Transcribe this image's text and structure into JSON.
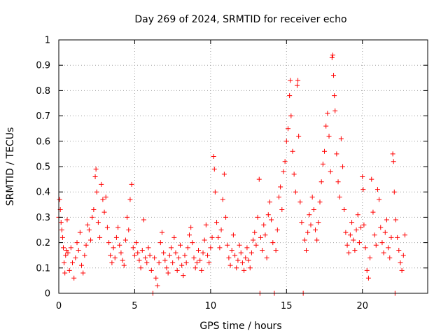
{
  "chart_data": {
    "type": "scatter",
    "title": "Day 269 of 2024, SRMTID for receiver echo",
    "xlabel": "GPS time / hours",
    "ylabel": "SRMTID / TECUs",
    "xlim": [
      0,
      24.3
    ],
    "ylim": [
      0,
      1
    ],
    "xticks": [
      0,
      5,
      10,
      15,
      20
    ],
    "xtick_labels": [
      "0",
      "5",
      "10",
      "15",
      "20"
    ],
    "yticks": [
      0,
      0.1,
      0.2,
      0.3,
      0.4,
      0.5,
      0.6,
      0.7,
      0.8,
      0.9,
      1
    ],
    "ytick_labels": [
      "0",
      "0.1",
      "0.2",
      "0.3",
      "0.4",
      "0.5",
      "0.6",
      "0.7",
      "0.8",
      "0.9",
      "1"
    ],
    "grid": true,
    "marker": "+",
    "color": "#ff0000",
    "series": [
      {
        "name": "SRMTID",
        "points": [
          [
            0.0,
            0.3
          ],
          [
            0.05,
            0.37
          ],
          [
            0.1,
            0.33
          ],
          [
            0.15,
            0.28
          ],
          [
            0.2,
            0.25
          ],
          [
            0.25,
            0.22
          ],
          [
            0.3,
            0.18
          ],
          [
            0.35,
            0.12
          ],
          [
            0.4,
            0.08
          ],
          [
            0.45,
            0.15
          ],
          [
            0.5,
            0.17
          ],
          [
            0.55,
            0.29
          ],
          [
            0.6,
            0.16
          ],
          [
            0.7,
            0.09
          ],
          [
            0.8,
            0.18
          ],
          [
            0.9,
            0.12
          ],
          [
            1.0,
            0.06
          ],
          [
            1.1,
            0.14
          ],
          [
            1.2,
            0.2
          ],
          [
            1.3,
            0.17
          ],
          [
            1.4,
            0.24
          ],
          [
            1.5,
            0.11
          ],
          [
            1.6,
            0.08
          ],
          [
            1.7,
            0.15
          ],
          [
            1.8,
            0.19
          ],
          [
            1.9,
            0.27
          ],
          [
            2.0,
            0.25
          ],
          [
            2.1,
            0.21
          ],
          [
            2.2,
            0.3
          ],
          [
            2.3,
            0.33
          ],
          [
            2.4,
            0.46
          ],
          [
            2.45,
            0.49
          ],
          [
            2.5,
            0.4
          ],
          [
            2.6,
            0.28
          ],
          [
            2.7,
            0.22
          ],
          [
            2.8,
            0.43
          ],
          [
            2.9,
            0.37
          ],
          [
            3.0,
            0.32
          ],
          [
            3.1,
            0.38
          ],
          [
            3.2,
            0.26
          ],
          [
            3.3,
            0.2
          ],
          [
            3.4,
            0.15
          ],
          [
            3.5,
            0.12
          ],
          [
            3.6,
            0.18
          ],
          [
            3.7,
            0.14
          ],
          [
            3.8,
            0.22
          ],
          [
            3.9,
            0.26
          ],
          [
            4.0,
            0.19
          ],
          [
            4.1,
            0.16
          ],
          [
            4.2,
            0.13
          ],
          [
            4.3,
            0.11
          ],
          [
            4.4,
            0.21
          ],
          [
            4.5,
            0.3
          ],
          [
            4.6,
            0.25
          ],
          [
            4.7,
            0.37
          ],
          [
            4.8,
            0.43
          ],
          [
            4.9,
            0.18
          ],
          [
            5.0,
            0.15
          ],
          [
            5.1,
            0.2
          ],
          [
            5.2,
            0.16
          ],
          [
            5.3,
            0.13
          ],
          [
            5.4,
            0.1
          ],
          [
            5.5,
            0.17
          ],
          [
            5.6,
            0.29
          ],
          [
            5.7,
            0.14
          ],
          [
            5.8,
            0.12
          ],
          [
            5.9,
            0.18
          ],
          [
            6.0,
            0.15
          ],
          [
            6.1,
            0.09
          ],
          [
            6.2,
            0.0
          ],
          [
            6.3,
            0.14
          ],
          [
            6.4,
            0.06
          ],
          [
            6.5,
            0.03
          ],
          [
            6.6,
            0.12
          ],
          [
            6.7,
            0.2
          ],
          [
            6.8,
            0.24
          ],
          [
            6.9,
            0.16
          ],
          [
            7.0,
            0.13
          ],
          [
            7.1,
            0.1
          ],
          [
            7.2,
            0.08
          ],
          [
            7.3,
            0.15
          ],
          [
            7.4,
            0.18
          ],
          [
            7.5,
            0.12
          ],
          [
            7.6,
            0.22
          ],
          [
            7.7,
            0.16
          ],
          [
            7.8,
            0.09
          ],
          [
            7.9,
            0.14
          ],
          [
            8.0,
            0.19
          ],
          [
            8.1,
            0.11
          ],
          [
            8.2,
            0.07
          ],
          [
            8.3,
            0.15
          ],
          [
            8.4,
            0.12
          ],
          [
            8.5,
            0.18
          ],
          [
            8.6,
            0.23
          ],
          [
            8.7,
            0.26
          ],
          [
            8.8,
            0.2
          ],
          [
            8.9,
            0.14
          ],
          [
            9.0,
            0.1
          ],
          [
            9.1,
            0.12
          ],
          [
            9.2,
            0.17
          ],
          [
            9.3,
            0.13
          ],
          [
            9.4,
            0.09
          ],
          [
            9.5,
            0.16
          ],
          [
            9.6,
            0.21
          ],
          [
            9.7,
            0.27
          ],
          [
            9.8,
            0.15
          ],
          [
            9.9,
            0.12
          ],
          [
            10.0,
            0.18
          ],
          [
            10.1,
            0.22
          ],
          [
            10.2,
            0.54
          ],
          [
            10.25,
            0.49
          ],
          [
            10.3,
            0.4
          ],
          [
            10.4,
            0.28
          ],
          [
            10.5,
            0.22
          ],
          [
            10.6,
            0.18
          ],
          [
            10.7,
            0.25
          ],
          [
            10.8,
            0.37
          ],
          [
            10.9,
            0.47
          ],
          [
            11.0,
            0.3
          ],
          [
            11.1,
            0.19
          ],
          [
            11.2,
            0.14
          ],
          [
            11.3,
            0.11
          ],
          [
            11.4,
            0.17
          ],
          [
            11.5,
            0.23
          ],
          [
            11.6,
            0.15
          ],
          [
            11.7,
            0.1
          ],
          [
            11.8,
            0.13
          ],
          [
            11.9,
            0.19
          ],
          [
            12.0,
            0.16
          ],
          [
            12.1,
            0.12
          ],
          [
            12.2,
            0.09
          ],
          [
            12.3,
            0.14
          ],
          [
            12.4,
            0.18
          ],
          [
            12.5,
            0.13
          ],
          [
            12.6,
            0.1
          ],
          [
            12.7,
            0.16
          ],
          [
            12.8,
            0.21
          ],
          [
            12.9,
            0.24
          ],
          [
            13.0,
            0.19
          ],
          [
            13.1,
            0.3
          ],
          [
            13.2,
            0.45
          ],
          [
            13.25,
            0.0
          ],
          [
            13.3,
            0.22
          ],
          [
            13.4,
            0.17
          ],
          [
            13.5,
            0.27
          ],
          [
            13.6,
            0.23
          ],
          [
            13.7,
            0.14
          ],
          [
            13.8,
            0.31
          ],
          [
            13.9,
            0.36
          ],
          [
            14.0,
            0.29
          ],
          [
            14.1,
            0.2
          ],
          [
            14.2,
            0.0
          ],
          [
            14.3,
            0.17
          ],
          [
            14.4,
            0.25
          ],
          [
            14.5,
            0.38
          ],
          [
            14.6,
            0.42
          ],
          [
            14.7,
            0.33
          ],
          [
            14.8,
            0.48
          ],
          [
            14.9,
            0.52
          ],
          [
            15.0,
            0.6
          ],
          [
            15.1,
            0.65
          ],
          [
            15.2,
            0.78
          ],
          [
            15.25,
            0.84
          ],
          [
            15.3,
            0.7
          ],
          [
            15.4,
            0.56
          ],
          [
            15.5,
            0.47
          ],
          [
            15.6,
            0.4
          ],
          [
            15.7,
            0.82
          ],
          [
            15.75,
            0.84
          ],
          [
            15.8,
            0.62
          ],
          [
            15.9,
            0.36
          ],
          [
            16.0,
            0.28
          ],
          [
            16.1,
            0.0
          ],
          [
            16.2,
            0.21
          ],
          [
            16.3,
            0.17
          ],
          [
            16.4,
            0.24
          ],
          [
            16.5,
            0.31
          ],
          [
            16.6,
            0.27
          ],
          [
            16.7,
            0.38
          ],
          [
            16.8,
            0.33
          ],
          [
            16.9,
            0.25
          ],
          [
            17.0,
            0.21
          ],
          [
            17.1,
            0.28
          ],
          [
            17.2,
            0.36
          ],
          [
            17.3,
            0.44
          ],
          [
            17.4,
            0.51
          ],
          [
            17.5,
            0.56
          ],
          [
            17.6,
            0.66
          ],
          [
            17.7,
            0.71
          ],
          [
            17.8,
            0.62
          ],
          [
            17.9,
            0.48
          ],
          [
            18.0,
            0.93
          ],
          [
            18.05,
            0.94
          ],
          [
            18.1,
            0.86
          ],
          [
            18.15,
            0.78
          ],
          [
            18.2,
            0.72
          ],
          [
            18.3,
            0.55
          ],
          [
            18.4,
            0.44
          ],
          [
            18.5,
            0.38
          ],
          [
            18.6,
            0.61
          ],
          [
            18.7,
            0.5
          ],
          [
            18.8,
            0.33
          ],
          [
            18.9,
            0.24
          ],
          [
            19.0,
            0.19
          ],
          [
            19.1,
            0.16
          ],
          [
            19.2,
            0.23
          ],
          [
            19.3,
            0.28
          ],
          [
            19.4,
            0.21
          ],
          [
            19.5,
            0.17
          ],
          [
            19.6,
            0.25
          ],
          [
            19.7,
            0.31
          ],
          [
            19.8,
            0.2
          ],
          [
            19.9,
            0.26
          ],
          [
            20.0,
            0.46
          ],
          [
            20.05,
            0.41
          ],
          [
            20.1,
            0.27
          ],
          [
            20.2,
            0.18
          ],
          [
            20.3,
            0.09
          ],
          [
            20.4,
            0.06
          ],
          [
            20.5,
            0.14
          ],
          [
            20.6,
            0.45
          ],
          [
            20.7,
            0.32
          ],
          [
            20.8,
            0.23
          ],
          [
            20.9,
            0.19
          ],
          [
            21.0,
            0.41
          ],
          [
            21.1,
            0.37
          ],
          [
            21.2,
            0.26
          ],
          [
            21.3,
            0.2
          ],
          [
            21.4,
            0.16
          ],
          [
            21.5,
            0.24
          ],
          [
            21.6,
            0.29
          ],
          [
            21.7,
            0.18
          ],
          [
            21.8,
            0.14
          ],
          [
            21.9,
            0.22
          ],
          [
            22.0,
            0.55
          ],
          [
            22.05,
            0.52
          ],
          [
            22.1,
            0.4
          ],
          [
            22.15,
            0.0
          ],
          [
            22.2,
            0.29
          ],
          [
            22.3,
            0.22
          ],
          [
            22.4,
            0.17
          ],
          [
            22.5,
            0.12
          ],
          [
            22.6,
            0.09
          ],
          [
            22.7,
            0.15
          ],
          [
            22.8,
            0.23
          ]
        ]
      }
    ]
  }
}
